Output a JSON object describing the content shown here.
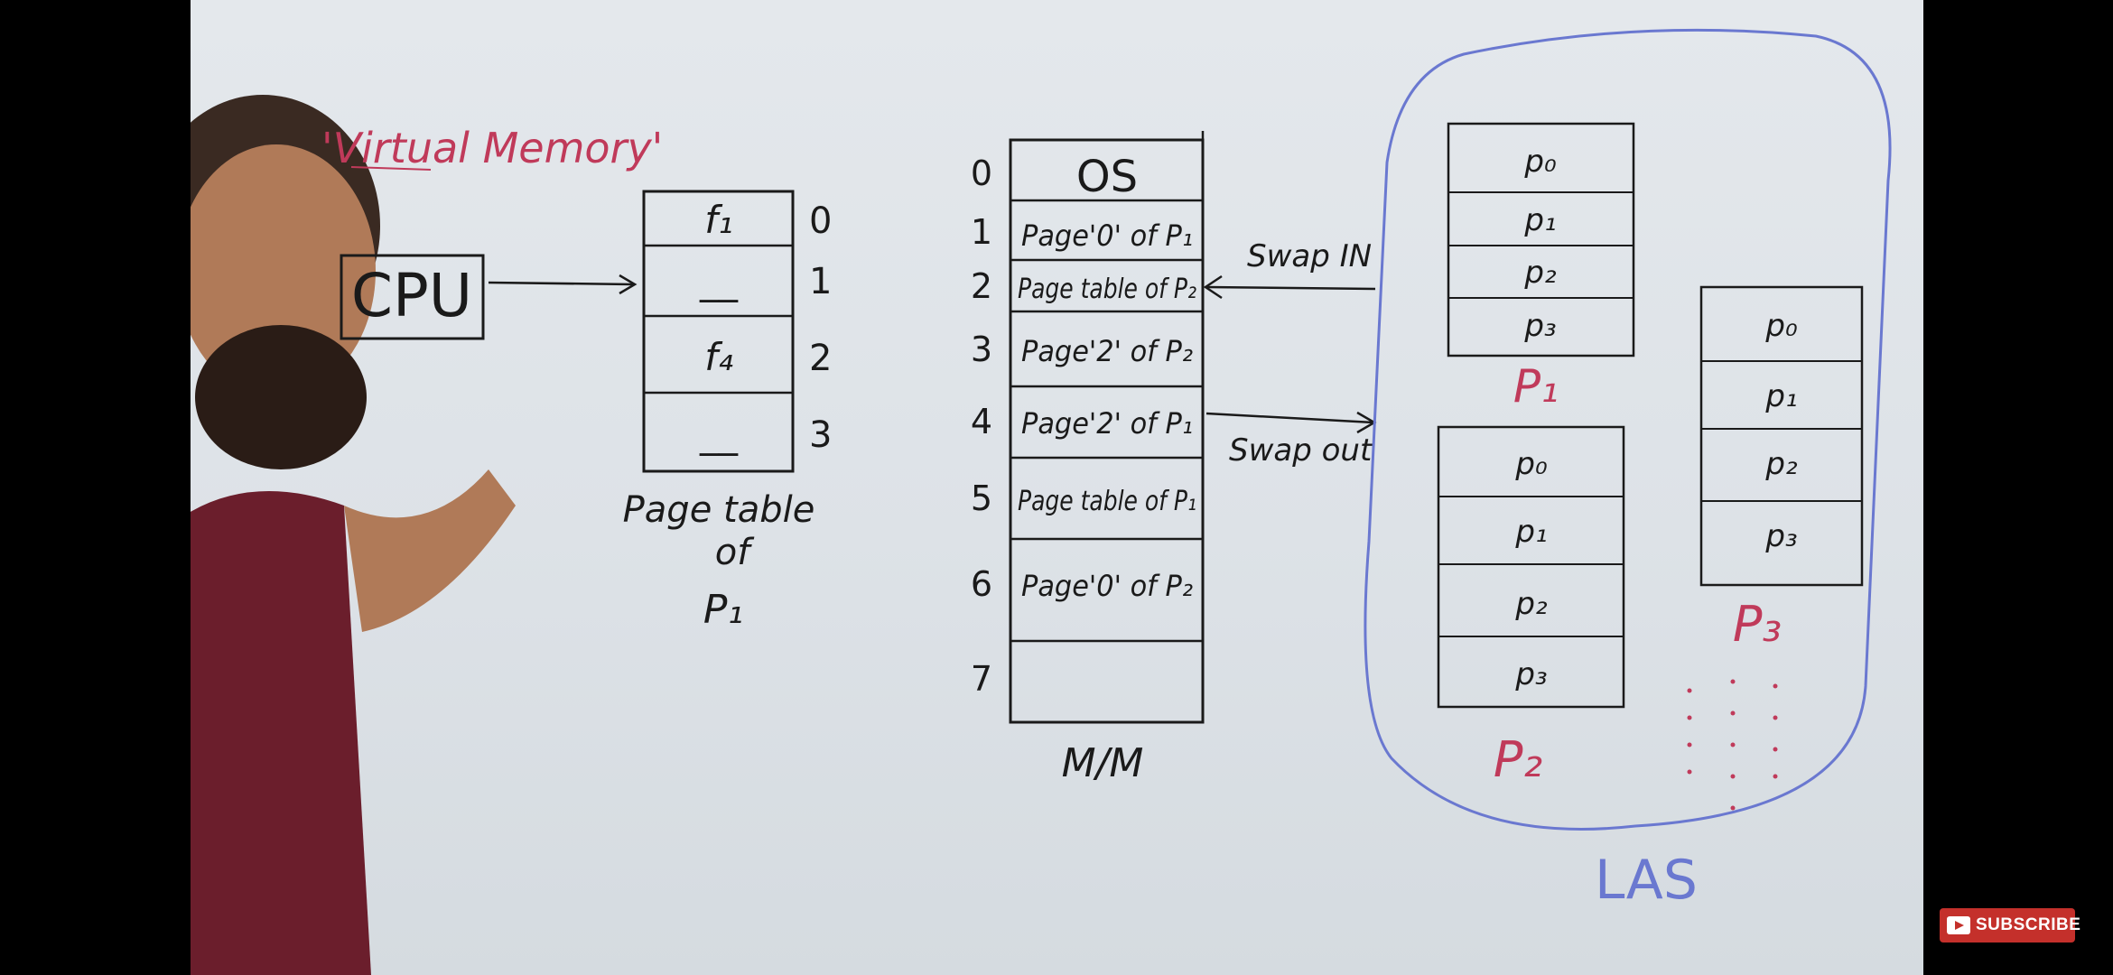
{
  "title": "'Virtual Memory'",
  "cpu": {
    "label": "CPU"
  },
  "page_table": {
    "rows": [
      {
        "index": "0",
        "value": "f₁"
      },
      {
        "index": "1",
        "value": "__"
      },
      {
        "index": "2",
        "value": "f₄"
      },
      {
        "index": "3",
        "value": "__"
      }
    ],
    "caption_line1": "Page table",
    "caption_line2": "of",
    "caption_line3": "P₁"
  },
  "main_memory": {
    "frames": [
      {
        "index": "0",
        "content": "OS"
      },
      {
        "index": "1",
        "content": "Page'0' of P₁"
      },
      {
        "index": "2",
        "content": "Page table of P₂"
      },
      {
        "index": "3",
        "content": "Page'2' of P₂"
      },
      {
        "index": "4",
        "content": "Page'2' of P₁"
      },
      {
        "index": "5",
        "content": "Page table of P₁"
      },
      {
        "index": "6",
        "content": "Page'0' of P₂"
      },
      {
        "index": "7",
        "content": ""
      }
    ],
    "caption": "M/M"
  },
  "swap": {
    "in_label": "Swap IN",
    "out_label": "Swap out"
  },
  "las": {
    "caption": "LAS",
    "processes": [
      {
        "name": "P₁",
        "pages": [
          "p₀",
          "p₁",
          "p₂",
          "p₃"
        ]
      },
      {
        "name": "P₂",
        "pages": [
          "p₀",
          "p₁",
          "p₂",
          "p₃"
        ]
      },
      {
        "name": "P₃",
        "pages": [
          "p₀",
          "p₁",
          "p₂",
          "p₃"
        ]
      }
    ]
  },
  "subscribe": {
    "label": "SUBSCRIBE"
  },
  "colors": {
    "marker_black": "#1a1a1a",
    "marker_red": "#c03a5a",
    "marker_blue": "#6a78d0"
  }
}
